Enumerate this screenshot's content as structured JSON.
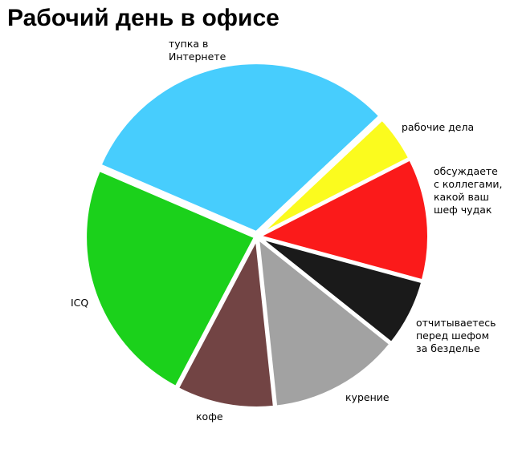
{
  "chart_data": {
    "type": "pie",
    "title": "Рабочий день в офисе",
    "slices": [
      {
        "label": "тупка в\nИнтернете",
        "value": 31.5,
        "color": "#47cdfd"
      },
      {
        "label": "рабочие дела",
        "value": 4.5,
        "color": "#fbfb1e"
      },
      {
        "label": "обсуждаете\nс коллегами,\nкакой ваш\nшеф чудак",
        "value": 11.75,
        "color": "#fb1a1a"
      },
      {
        "label": "отчитываетесь\nперед шефом\nза безделье",
        "value": 6.5,
        "color": "#1a1a1a"
      },
      {
        "label": "курение",
        "value": 12.6,
        "color": "#a2a2a2"
      },
      {
        "label": "кофе",
        "value": 9.4,
        "color": "#724444"
      },
      {
        "label": "ICQ",
        "value": 23.75,
        "color": "#1bd11b"
      }
    ],
    "legend": "none"
  }
}
